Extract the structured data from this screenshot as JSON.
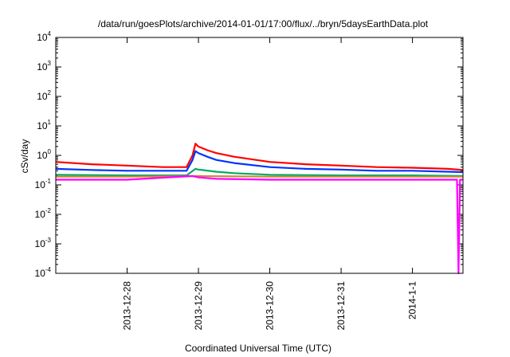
{
  "chart_data": {
    "type": "line",
    "title": "/data/run/goesPlots/archive/2014-01-01/17:00/flux/../bryn/5daysEarthData.plot",
    "xlabel": "Coordinated Universal Time (UTC)",
    "ylabel": "cSv/day",
    "yscale": "log",
    "ylim": [
      0.0001,
      10000
    ],
    "xlim": [
      "2013-12-27T00:00",
      "2014-01-01T17:00"
    ],
    "y_ticks": [
      {
        "base": "10",
        "exp": "-4",
        "value": 0.0001
      },
      {
        "base": "10",
        "exp": "-3",
        "value": 0.001
      },
      {
        "base": "10",
        "exp": "-2",
        "value": 0.01
      },
      {
        "base": "10",
        "exp": "-1",
        "value": 0.1
      },
      {
        "base": "10",
        "exp": "0",
        "value": 1
      },
      {
        "base": "10",
        "exp": "1",
        "value": 10
      },
      {
        "base": "10",
        "exp": "2",
        "value": 100
      },
      {
        "base": "10",
        "exp": "3",
        "value": 1000
      },
      {
        "base": "10",
        "exp": "4",
        "value": 10000
      }
    ],
    "x_ticks": [
      {
        "label": "2013-12-28",
        "time": "2013-12-28T00:00"
      },
      {
        "label": "2013-12-29",
        "time": "2013-12-29T00:00"
      },
      {
        "label": "2013-12-30",
        "time": "2013-12-30T00:00"
      },
      {
        "label": "2013-12-31",
        "time": "2013-12-31T00:00"
      },
      {
        "label": "2014-1-1",
        "time": "2014-01-01T00:00"
      }
    ],
    "grid": false,
    "series": [
      {
        "color": "#ff0000",
        "x": [
          "2013-12-27T00:00",
          "2013-12-27T12:00",
          "2013-12-28T00:00",
          "2013-12-28T12:00",
          "2013-12-28T20:00",
          "2013-12-28T22:00",
          "2013-12-28T23:00",
          "2013-12-29T00:00",
          "2013-12-29T03:00",
          "2013-12-29T06:00",
          "2013-12-29T12:00",
          "2013-12-30T00:00",
          "2013-12-30T12:00",
          "2013-12-31T00:00",
          "2013-12-31T12:00",
          "2014-01-01T00:00",
          "2014-01-01T12:00",
          "2014-01-01T17:00"
        ],
        "y": [
          0.6,
          0.5,
          0.45,
          0.4,
          0.4,
          1.0,
          2.5,
          2.0,
          1.5,
          1.2,
          0.9,
          0.6,
          0.5,
          0.45,
          0.4,
          0.38,
          0.35,
          0.32
        ]
      },
      {
        "color": "#0033ff",
        "x": [
          "2013-12-27T00:00",
          "2013-12-27T12:00",
          "2013-12-28T00:00",
          "2013-12-28T12:00",
          "2013-12-28T20:00",
          "2013-12-28T22:00",
          "2013-12-28T23:00",
          "2013-12-29T00:00",
          "2013-12-29T03:00",
          "2013-12-29T06:00",
          "2013-12-29T12:00",
          "2013-12-30T00:00",
          "2013-12-30T12:00",
          "2013-12-31T00:00",
          "2013-12-31T12:00",
          "2014-01-01T00:00",
          "2014-01-01T12:00",
          "2014-01-01T17:00"
        ],
        "y": [
          0.35,
          0.32,
          0.3,
          0.3,
          0.3,
          0.7,
          1.4,
          1.2,
          0.9,
          0.7,
          0.55,
          0.4,
          0.35,
          0.33,
          0.3,
          0.3,
          0.28,
          0.27
        ]
      },
      {
        "color": "#00aa66",
        "x": [
          "2013-12-27T00:00",
          "2013-12-28T00:00",
          "2013-12-28T20:00",
          "2013-12-28T23:00",
          "2013-12-29T00:00",
          "2013-12-29T06:00",
          "2013-12-29T12:00",
          "2013-12-30T00:00",
          "2013-12-31T00:00",
          "2014-01-01T00:00",
          "2014-01-01T17:00"
        ],
        "y": [
          0.22,
          0.21,
          0.21,
          0.35,
          0.33,
          0.28,
          0.25,
          0.22,
          0.21,
          0.21,
          0.2
        ]
      },
      {
        "color": "#cc8833",
        "x": [
          "2013-12-27T00:00",
          "2013-12-28T00:00",
          "2013-12-29T00:00",
          "2013-12-30T00:00",
          "2013-12-31T00:00",
          "2014-01-01T00:00",
          "2014-01-01T17:00"
        ],
        "y": [
          0.19,
          0.19,
          0.2,
          0.19,
          0.19,
          0.19,
          0.19
        ]
      },
      {
        "color": "#ff00ff",
        "x": [
          "2013-12-27T00:00",
          "2013-12-28T00:00",
          "2013-12-28T22:00",
          "2013-12-29T00:00",
          "2013-12-29T06:00",
          "2013-12-30T00:00",
          "2013-12-31T00:00",
          "2014-01-01T00:00",
          "2014-01-01T15:00",
          "2014-01-01T15:30",
          "2014-01-01T16:00",
          "2014-01-01T17:00"
        ],
        "y": [
          0.15,
          0.15,
          0.2,
          0.18,
          0.16,
          0.15,
          0.15,
          0.15,
          0.15,
          0.0001,
          0.15,
          0.15
        ]
      }
    ]
  }
}
